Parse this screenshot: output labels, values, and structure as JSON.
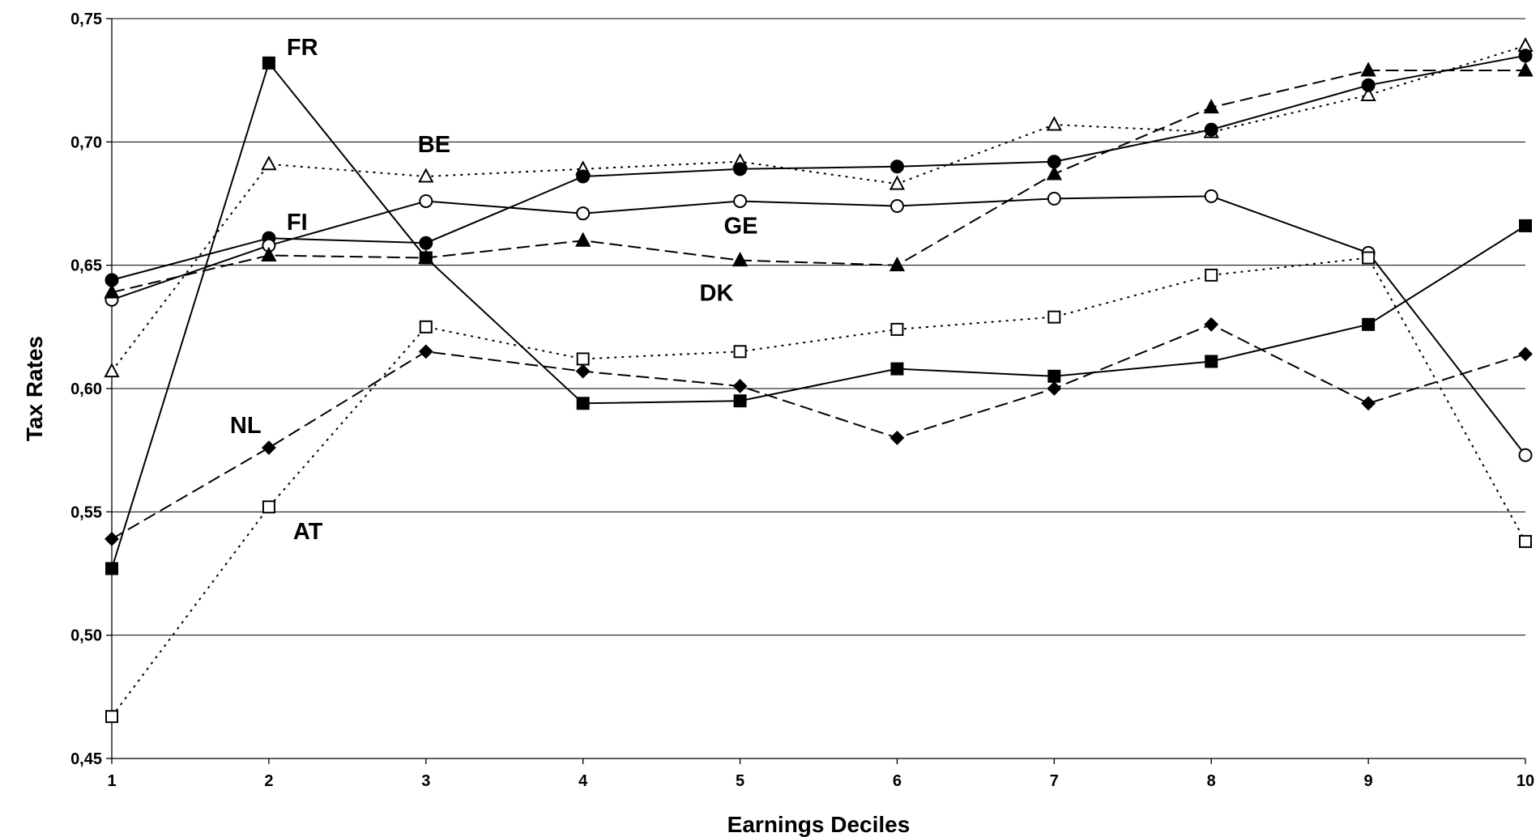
{
  "chart_data": {
    "type": "line",
    "title": "",
    "xlabel": "Earnings Deciles",
    "ylabel": "Tax Rates",
    "x": [
      1,
      2,
      3,
      4,
      5,
      6,
      7,
      8,
      9,
      10
    ],
    "x_ticks": [
      "1",
      "2",
      "3",
      "4",
      "5",
      "6",
      "7",
      "8",
      "9",
      "10"
    ],
    "ylim": [
      0.45,
      0.75
    ],
    "y_ticks": [
      {
        "value": 0.45,
        "label": "0,45"
      },
      {
        "value": 0.5,
        "label": "0,50"
      },
      {
        "value": 0.55,
        "label": "0,55"
      },
      {
        "value": 0.6,
        "label": "0,60"
      },
      {
        "value": 0.65,
        "label": "0,65"
      },
      {
        "value": 0.7,
        "label": "0,70"
      },
      {
        "value": 0.75,
        "label": "0,75"
      }
    ],
    "grid": true,
    "legend": "none",
    "series": [
      {
        "name": "FR",
        "marker": "square-filled",
        "line": "solid",
        "values": [
          0.527,
          0.732,
          0.653,
          0.594,
          0.595,
          0.608,
          0.605,
          0.611,
          0.626,
          0.666
        ]
      },
      {
        "name": "BE",
        "marker": "triangle-open",
        "line": "dotted",
        "values": [
          0.607,
          0.691,
          0.686,
          0.689,
          0.692,
          0.683,
          0.707,
          0.704,
          0.719,
          0.739
        ]
      },
      {
        "name": "FI",
        "marker": "circle-filled",
        "line": "solid",
        "values": [
          0.644,
          0.661,
          0.659,
          0.686,
          0.689,
          0.69,
          0.692,
          0.705,
          0.723,
          0.735
        ]
      },
      {
        "name": "GE",
        "marker": "circle-open",
        "line": "solid",
        "values": [
          0.636,
          0.658,
          0.676,
          0.671,
          0.676,
          0.674,
          0.677,
          0.678,
          0.655,
          0.573
        ]
      },
      {
        "name": "DK",
        "marker": "triangle-filled",
        "line": "dashed",
        "values": [
          0.639,
          0.654,
          0.653,
          0.66,
          0.652,
          0.65,
          0.687,
          0.714,
          0.729,
          0.729
        ]
      },
      {
        "name": "NL",
        "marker": "diamond-filled",
        "line": "dashed",
        "values": [
          0.539,
          0.576,
          0.615,
          0.607,
          0.601,
          0.58,
          0.6,
          0.626,
          0.594,
          0.614
        ]
      },
      {
        "name": "AT",
        "marker": "square-open",
        "line": "dotted",
        "values": [
          0.467,
          0.552,
          0.625,
          0.612,
          0.615,
          0.624,
          0.629,
          0.646,
          0.653,
          0.538
        ]
      }
    ],
    "annotations": [
      {
        "text": "FR",
        "series": "FR",
        "anchor": {
          "x": 2,
          "y": 0.732
        },
        "placement": "upper-right"
      },
      {
        "text": "BE",
        "series": "BE",
        "anchor": {
          "x": 3,
          "y": 0.686
        },
        "placement": "above"
      },
      {
        "text": "FI",
        "series": "FI",
        "anchor": {
          "x": 2,
          "y": 0.661
        },
        "placement": "upper-right"
      },
      {
        "text": "GE",
        "series": "GE",
        "anchor": {
          "x": 5,
          "y": 0.676
        },
        "placement": "below"
      },
      {
        "text": "DK",
        "series": "DK",
        "anchor": {
          "x": 5,
          "y": 0.652
        },
        "placement": "lower-left"
      },
      {
        "text": "NL",
        "series": "NL",
        "anchor": {
          "x": 2,
          "y": 0.576
        },
        "placement": "upper-left"
      },
      {
        "text": "AT",
        "series": "AT",
        "anchor": {
          "x": 2,
          "y": 0.552
        },
        "placement": "lower-right"
      }
    ]
  }
}
